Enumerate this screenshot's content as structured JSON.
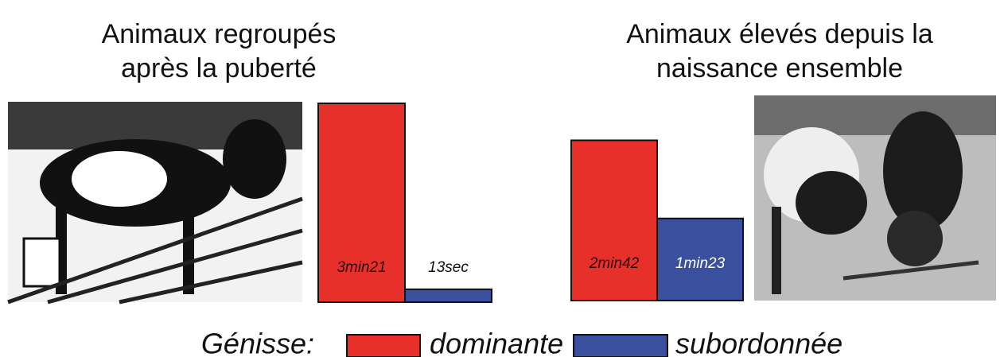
{
  "chart_data": [
    {
      "type": "bar",
      "title": [
        "Animaux regroupés",
        "après la puberté"
      ],
      "categories": [
        null
      ],
      "series": [
        {
          "name": "dominante",
          "color": "#e8302a",
          "values": [
            201
          ],
          "value_labels": [
            "3min21"
          ]
        },
        {
          "name": "subordonnée",
          "color": "#3b4f9f",
          "values": [
            13
          ],
          "value_labels": [
            "13sec"
          ]
        }
      ]
    },
    {
      "type": "bar",
      "title": [
        "Animaux élevés depuis la",
        "naissance ensemble"
      ],
      "categories": [
        null
      ],
      "series": [
        {
          "name": "dominante",
          "color": "#e8302a",
          "values": [
            162
          ],
          "value_labels": [
            "2min42"
          ]
        },
        {
          "name": "subordonnée",
          "color": "#3b4f9f",
          "values": [
            83
          ],
          "value_labels": [
            "1min23"
          ]
        }
      ]
    }
  ],
  "legend_title": "Génisse:"
}
